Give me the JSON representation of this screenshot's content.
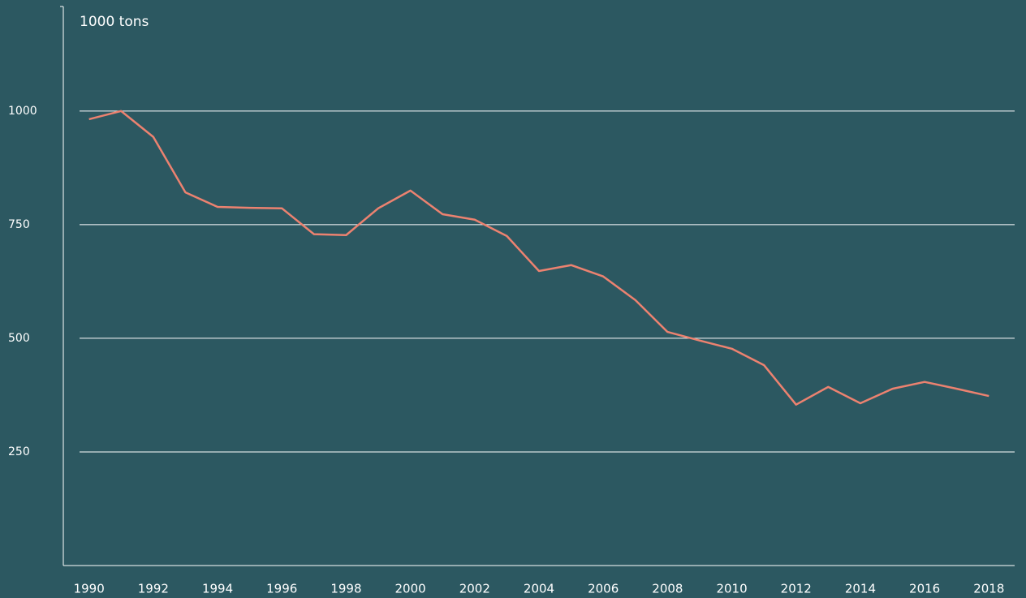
{
  "chart_data": {
    "type": "line",
    "ylabel": "1000 tons",
    "x": [
      1990,
      1991,
      1992,
      1993,
      1994,
      1995,
      1996,
      1997,
      1998,
      1999,
      2000,
      2001,
      2002,
      2003,
      2004,
      2005,
      2006,
      2007,
      2008,
      2009,
      2010,
      2011,
      2012,
      2013,
      2014,
      2015,
      2016,
      2017,
      2018
    ],
    "values": [
      982,
      1000,
      943,
      821,
      789,
      787,
      786,
      729,
      727,
      786,
      825,
      773,
      761,
      725,
      648,
      661,
      636,
      584,
      514,
      495,
      477,
      441,
      354,
      393,
      357,
      389,
      404,
      389,
      373
    ],
    "color": "#ec8270",
    "xlim": [
      1989.2,
      2018.8
    ],
    "xticks": [
      1990,
      1992,
      1994,
      1996,
      1998,
      2000,
      2002,
      2004,
      2006,
      2008,
      2010,
      2012,
      2014,
      2016,
      2018
    ],
    "ylim": [
      0,
      1230
    ],
    "yticks": [
      250,
      500,
      750,
      1000
    ],
    "grid": true
  }
}
